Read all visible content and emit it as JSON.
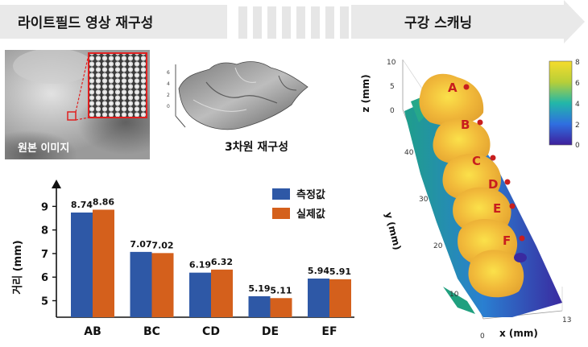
{
  "banner": {
    "left_title": "라이트필드 영상 재구성",
    "right_title": "구강 스캐닝"
  },
  "original_image": {
    "label": "원본 이미지"
  },
  "reconstruction": {
    "label": "3차원 재구성"
  },
  "chart_data": {
    "type": "bar",
    "categories": [
      "AB",
      "BC",
      "CD",
      "DE",
      "EF"
    ],
    "series": [
      {
        "name": "측정값",
        "values": [
          8.74,
          7.07,
          6.19,
          5.19,
          5.94
        ],
        "color": "#2e58a6"
      },
      {
        "name": "실제값",
        "values": [
          8.86,
          7.02,
          6.32,
          5.11,
          5.91
        ],
        "color": "#d4601c"
      }
    ],
    "value_labels": [
      [
        "8.74",
        "7.07",
        "6.19",
        "5.19",
        "5.94"
      ],
      [
        "8.86",
        "7.02",
        "6.32",
        "5.11",
        "5.91"
      ]
    ],
    "ylabel": "거리 (mm)",
    "yticks": [
      "5",
      "6",
      "7",
      "8",
      "9"
    ],
    "ylim": [
      4.3,
      9.9
    ],
    "legend_placement": "top-right"
  },
  "scan_plot": {
    "z_label": "z (mm)",
    "y_label": "y (mm)",
    "x_label": "x (mm)",
    "z_ticks": [
      "10",
      "5",
      "0"
    ],
    "y_ticks": [
      "40",
      "30",
      "20",
      "10"
    ],
    "x_ticks": [
      "0",
      "13"
    ],
    "colorbar_ticks": [
      "8",
      "6",
      "4",
      "2",
      "0"
    ],
    "points": [
      "A",
      "B",
      "C",
      "D",
      "E",
      "F"
    ]
  },
  "recon_axis_ticks": [
    "6",
    "4",
    "2",
    "0"
  ]
}
